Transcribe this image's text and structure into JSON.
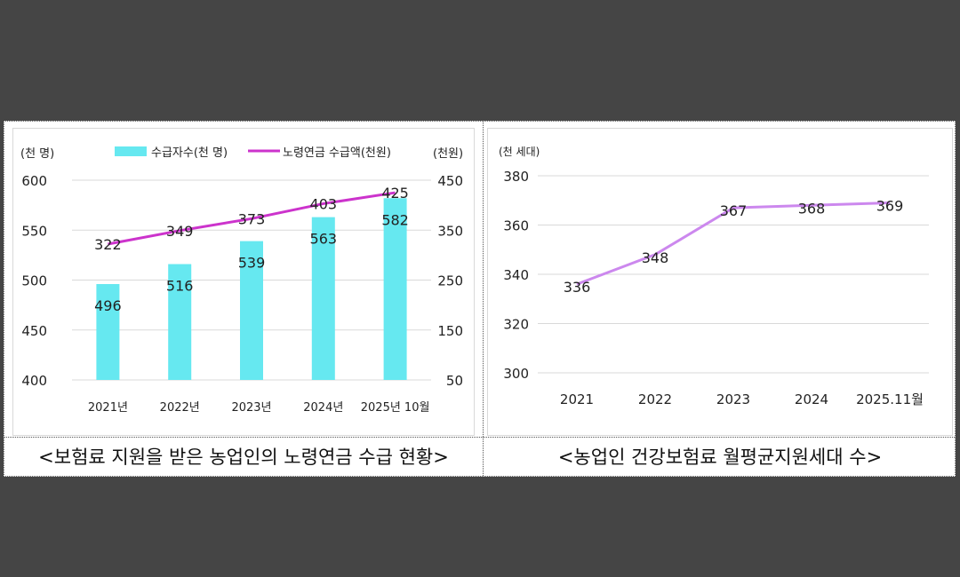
{
  "colors": {
    "background": "#454545",
    "bar": "#66e8f0",
    "line_left": "#cc33cc",
    "line_right": "#cc88ee",
    "grid": "#d9d9d9",
    "text": "#222222"
  },
  "left_caption": "<보험료 지원을 받은 농업인의 노령연금 수급 현황>",
  "right_caption": "<농업인 건강보험료 월평균지원세대 수>",
  "chart_data": [
    {
      "type": "bar",
      "categories": [
        "2021년",
        "2022년",
        "2023년",
        "2024년",
        "2025년 10월"
      ],
      "left_axis_unit": "(천 명)",
      "right_axis_unit": "(천원)",
      "legend": {
        "position": "top",
        "items": [
          "수급자수(천 명)",
          "노령연금 수급액(천원)"
        ]
      },
      "grid": true,
      "series": [
        {
          "name": "수급자수(천 명)",
          "type": "bar",
          "axis": "left",
          "values": [
            496,
            516,
            539,
            563,
            582
          ],
          "color": "#66e8f0"
        },
        {
          "name": "노령연금 수급액(천원)",
          "type": "line",
          "axis": "right",
          "values": [
            322,
            349,
            373,
            403,
            425
          ],
          "color": "#cc33cc"
        }
      ],
      "ylim_left": [
        400,
        600
      ],
      "yticks_left": [
        400,
        450,
        500,
        550,
        600
      ],
      "ylim_right": [
        50,
        450
      ],
      "yticks_right": [
        50,
        150,
        250,
        350,
        450
      ]
    },
    {
      "type": "line",
      "categories": [
        "2021",
        "2022",
        "2023",
        "2024",
        "2025.11월"
      ],
      "y_axis_unit": "(천 세대)",
      "grid": true,
      "series": [
        {
          "values": [
            336,
            348,
            367,
            368,
            369
          ],
          "color": "#cc88ee"
        }
      ],
      "ylim": [
        300,
        380
      ],
      "yticks": [
        300,
        320,
        340,
        360,
        380
      ]
    }
  ]
}
